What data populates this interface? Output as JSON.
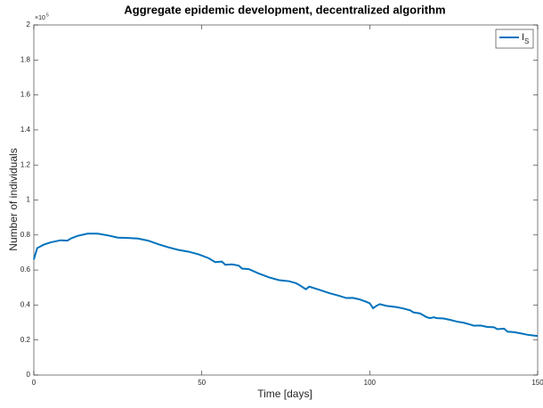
{
  "chart_data": {
    "type": "line",
    "title": "Aggregate epidemic development, decentralized algorithm",
    "xlabel": "Time [days]",
    "ylabel": "Number of individuals",
    "y_multiplier": {
      "base": "×10",
      "exponent": "5"
    },
    "xlim": [
      0,
      150
    ],
    "xticks": [
      0,
      50,
      100,
      150
    ],
    "ylim": [
      0,
      200000
    ],
    "yticks": [
      0,
      {
        "value": 20000,
        "label": "0.2"
      },
      {
        "value": 40000,
        "label": "0.4"
      },
      {
        "value": 60000,
        "label": "0.6"
      },
      {
        "value": 80000,
        "label": "0.8"
      },
      {
        "value": 100000,
        "label": "1"
      },
      {
        "value": 120000,
        "label": "1.2"
      },
      {
        "value": 140000,
        "label": "1.4"
      },
      {
        "value": 160000,
        "label": "1.6"
      },
      {
        "value": 180000,
        "label": "1.8"
      },
      {
        "value": 200000,
        "label": "2"
      }
    ],
    "grid": false,
    "legend": "top-right",
    "x": [
      0,
      1,
      3,
      5,
      8,
      10,
      11,
      13,
      16,
      19,
      22,
      25,
      28,
      31,
      34,
      37,
      40,
      43,
      46,
      49,
      52,
      54,
      56,
      57,
      59,
      61,
      62,
      64,
      67,
      70,
      73,
      76,
      78,
      79,
      81,
      82,
      85,
      88,
      91,
      93,
      95,
      97,
      99,
      100,
      101,
      102,
      103,
      105,
      108,
      110,
      112,
      113,
      115,
      117,
      118,
      119,
      120,
      122,
      124,
      126,
      128,
      130,
      131,
      133,
      135,
      137,
      138,
      140,
      141,
      143,
      145,
      147,
      149,
      150
    ],
    "series": [
      {
        "name": "I",
        "name_subscript": "S",
        "color": "#0072bd",
        "values": [
          66000,
          72500,
          74500,
          75800,
          77000,
          76800,
          78000,
          79500,
          80800,
          80800,
          79800,
          78500,
          78300,
          78000,
          76800,
          74800,
          73000,
          71500,
          70500,
          69000,
          66800,
          64500,
          64800,
          63000,
          63200,
          62500,
          60800,
          60500,
          58000,
          55800,
          54200,
          53600,
          52500,
          51500,
          49000,
          50500,
          48700,
          46800,
          45200,
          44000,
          44100,
          43200,
          41800,
          41000,
          38200,
          39500,
          40500,
          39500,
          38800,
          38000,
          37000,
          35800,
          35200,
          33000,
          32500,
          33000,
          32500,
          32300,
          31500,
          30500,
          29900,
          28800,
          28200,
          28300,
          27500,
          27300,
          26200,
          26500,
          24800,
          24500,
          23800,
          23000,
          22500,
          22300
        ]
      }
    ]
  }
}
